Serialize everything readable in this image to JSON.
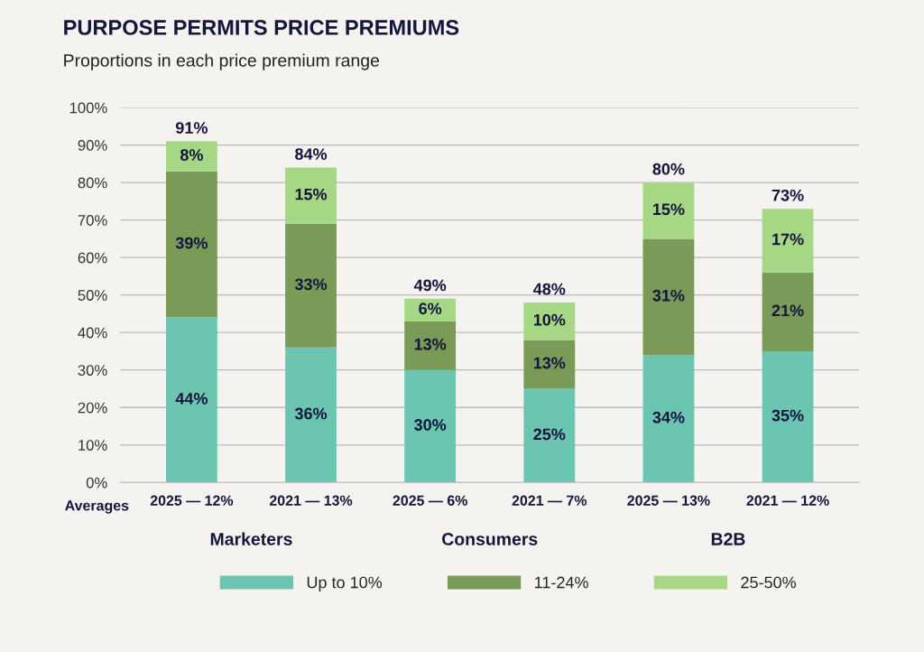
{
  "chart_data": {
    "type": "bar",
    "stacked": true,
    "title": "PURPOSE PERMITS PRICE PREMIUMS",
    "subtitle": "Proportions in each price premium range",
    "xlabel": "Averages",
    "categories": [
      "2025 — 12%",
      "2021 — 13%",
      "2025 — 6%",
      "2021 — 7%",
      "2025 — 13%",
      "2021 — 12%"
    ],
    "series": [
      {
        "name": "Up to 10%",
        "color": "#6cc5b0",
        "values": [
          44,
          36,
          30,
          25,
          34,
          35
        ],
        "value_labels": [
          "44%",
          "36%",
          "30%",
          "25%",
          "34%",
          "35%"
        ]
      },
      {
        "name": "11-24%",
        "color": "#7a9a57",
        "values": [
          39,
          33,
          13,
          13,
          31,
          21
        ],
        "value_labels": [
          "39%",
          "33%",
          "13%",
          "13%",
          "31%",
          "21%"
        ]
      },
      {
        "name": "25-50%",
        "color": "#a6d785",
        "values": [
          8,
          15,
          6,
          10,
          15,
          17
        ],
        "value_labels": [
          "8%",
          "15%",
          "6%",
          "10%",
          "15%",
          "17%"
        ]
      }
    ],
    "totals": [
      "91%",
      "84%",
      "49%",
      "48%",
      "80%",
      "73%"
    ],
    "annotations": [
      "Marketers",
      "Consumers",
      "B2B"
    ],
    "ylim": [
      0,
      100
    ],
    "yticks": [
      {
        "value": 0,
        "label": "0%"
      },
      {
        "value": 10,
        "label": "10%"
      },
      {
        "value": 20,
        "label": "20%"
      },
      {
        "value": 30,
        "label": "30%"
      },
      {
        "value": 40,
        "label": "40%"
      },
      {
        "value": 50,
        "label": "50%"
      },
      {
        "value": 60,
        "label": "60%"
      },
      {
        "value": 70,
        "label": "70%"
      },
      {
        "value": 80,
        "label": "80%"
      },
      {
        "value": 90,
        "label": "90%"
      },
      {
        "value": 100,
        "label": "100%"
      }
    ],
    "grid": "y",
    "legend": "bottom"
  }
}
